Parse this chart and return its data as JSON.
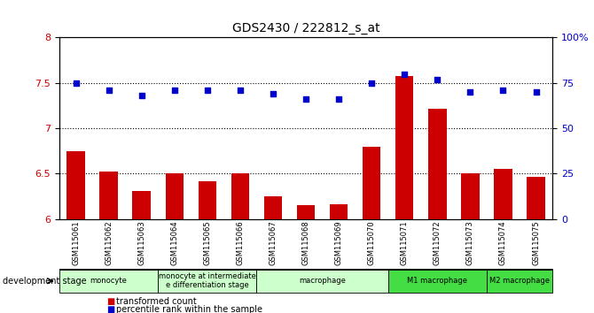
{
  "title": "GDS2430 / 222812_s_at",
  "samples": [
    "GSM115061",
    "GSM115062",
    "GSM115063",
    "GSM115064",
    "GSM115065",
    "GSM115066",
    "GSM115067",
    "GSM115068",
    "GSM115069",
    "GSM115070",
    "GSM115071",
    "GSM115072",
    "GSM115073",
    "GSM115074",
    "GSM115075"
  ],
  "bar_values": [
    6.75,
    6.52,
    6.31,
    6.5,
    6.42,
    6.5,
    6.25,
    6.15,
    6.16,
    6.8,
    7.58,
    7.22,
    6.5,
    6.55,
    6.47
  ],
  "scatter_values": [
    75,
    71,
    68,
    71,
    71,
    71,
    69,
    66,
    66,
    75,
    80,
    77,
    70,
    71,
    70
  ],
  "bar_color": "#cc0000",
  "scatter_color": "#0000cc",
  "ylim_left": [
    6.0,
    8.0
  ],
  "ylim_right": [
    0,
    100
  ],
  "yticks_left": [
    6.0,
    6.5,
    7.0,
    7.5,
    8.0
  ],
  "yticks_right": [
    0,
    25,
    50,
    75,
    100
  ],
  "hlines": [
    6.5,
    7.0,
    7.5
  ],
  "stage_spans": [
    {
      "label": "monocyte",
      "start": 0,
      "end": 2,
      "color": "#ccffcc"
    },
    {
      "label": "monocyte at intermediate\ne differentiation stage",
      "start": 3,
      "end": 5,
      "color": "#ccffcc"
    },
    {
      "label": "macrophage",
      "start": 6,
      "end": 9,
      "color": "#ccffcc"
    },
    {
      "label": "M1 macrophage",
      "start": 10,
      "end": 12,
      "color": "#44dd44"
    },
    {
      "label": "M2 macrophage",
      "start": 13,
      "end": 14,
      "color": "#44dd44"
    }
  ],
  "dev_stage_label": "development stage",
  "legend_bar": "transformed count",
  "legend_scatter": "percentile rank within the sample",
  "background_color": "#ffffff",
  "tick_label_color_left": "#cc0000",
  "tick_label_color_right": "#0000cc",
  "xlabel_color": "#000000",
  "sample_box_color": "#cccccc"
}
